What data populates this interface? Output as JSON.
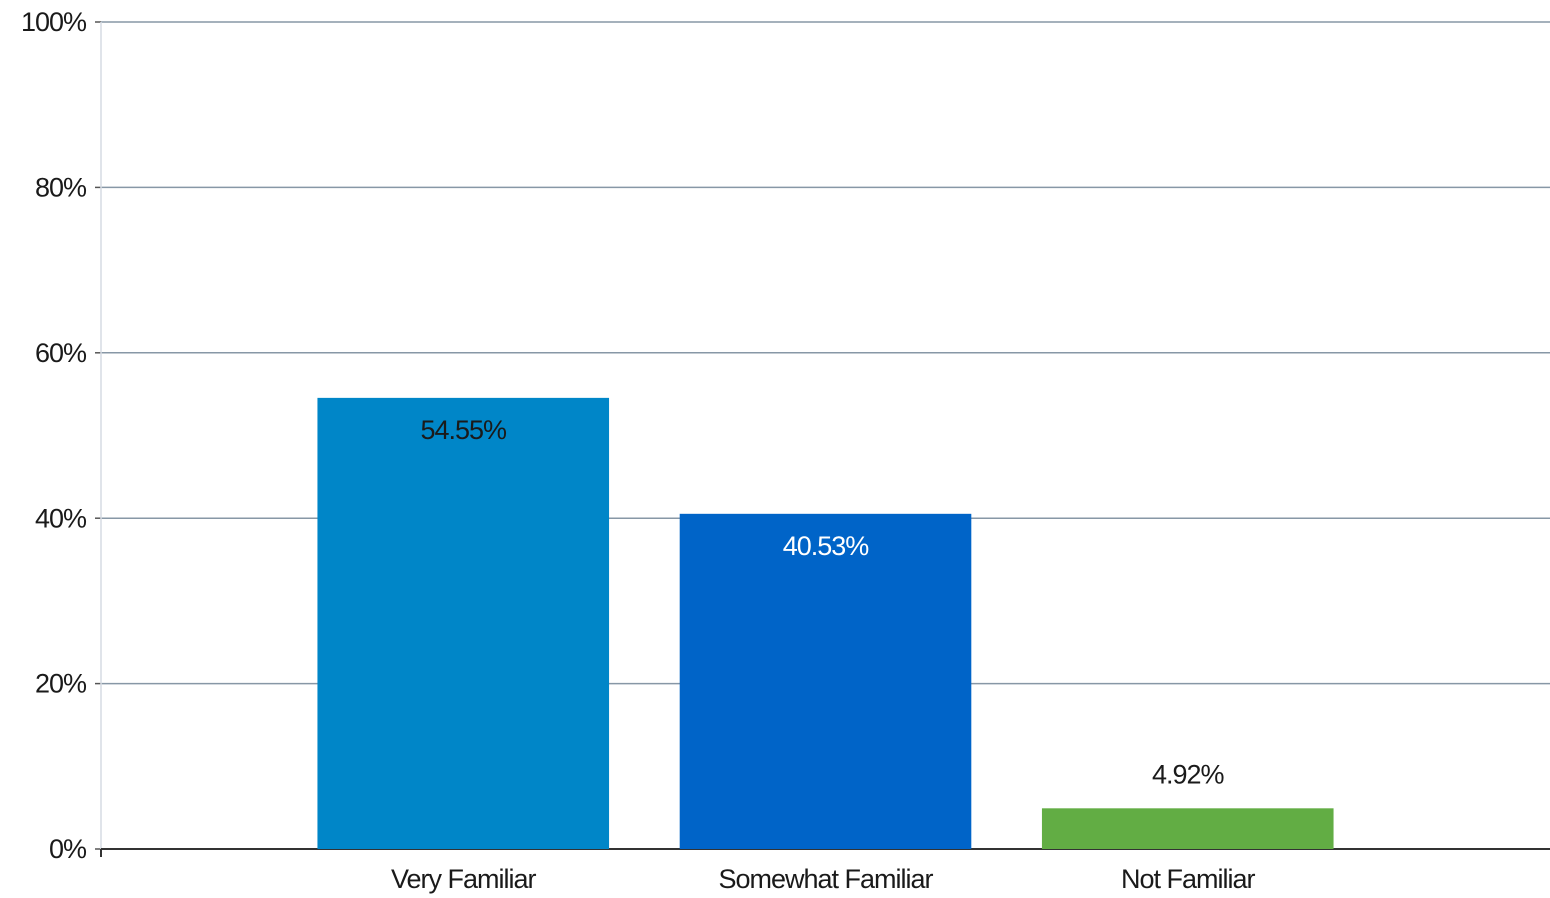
{
  "chart_data": {
    "type": "bar",
    "categories": [
      "Very Familiar",
      "Somewhat Familiar",
      "Not Familiar"
    ],
    "series": [
      {
        "values": [
          54.55,
          40.53,
          4.92
        ],
        "value_labels": [
          "54.55%",
          "40.53%",
          "4.92%"
        ],
        "colors": [
          "#0086c8",
          "#0064c8",
          "#62ad44"
        ]
      }
    ],
    "ylim": [
      0,
      100
    ],
    "yticks": [
      {
        "value": 0,
        "label": "0%"
      },
      {
        "value": 20,
        "label": "20%"
      },
      {
        "value": 40,
        "label": "40%"
      },
      {
        "value": 60,
        "label": "60%"
      },
      {
        "value": 80,
        "label": "80%"
      },
      {
        "value": 100,
        "label": "100%"
      }
    ],
    "grid": true
  }
}
